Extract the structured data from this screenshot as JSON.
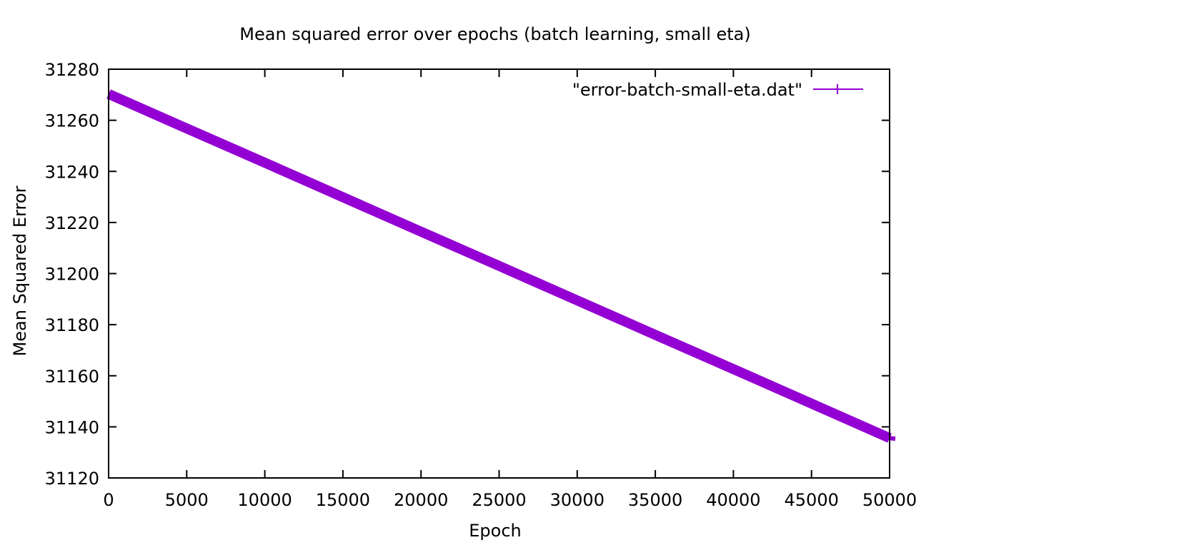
{
  "chart_data": {
    "type": "line",
    "title": "Mean squared error over epochs (batch learning, small eta)",
    "xlabel": "Epoch",
    "ylabel": "Mean Squared Error",
    "xlim": [
      0,
      50000
    ],
    "ylim": [
      31120,
      31280
    ],
    "xticks": [
      "0",
      "5000",
      "10000",
      "15000",
      "20000",
      "25000",
      "30000",
      "35000",
      "40000",
      "45000",
      "50000"
    ],
    "yticks": [
      "31120",
      "31140",
      "31160",
      "31180",
      "31200",
      "31220",
      "31240",
      "31260",
      "31280"
    ],
    "grid": false,
    "legend_position": "top-right",
    "series": [
      {
        "name": "\"error-batch-small-eta.dat\"",
        "color": "#9400d3",
        "marker": "plus",
        "x": [
          0,
          5000,
          10000,
          15000,
          20000,
          25000,
          30000,
          35000,
          40000,
          45000,
          50000
        ],
        "y": [
          31270.3,
          31256.8,
          31243.4,
          31229.9,
          31216.4,
          31203.0,
          31189.5,
          31176.0,
          31162.6,
          31149.1,
          31135.6
        ]
      }
    ]
  }
}
